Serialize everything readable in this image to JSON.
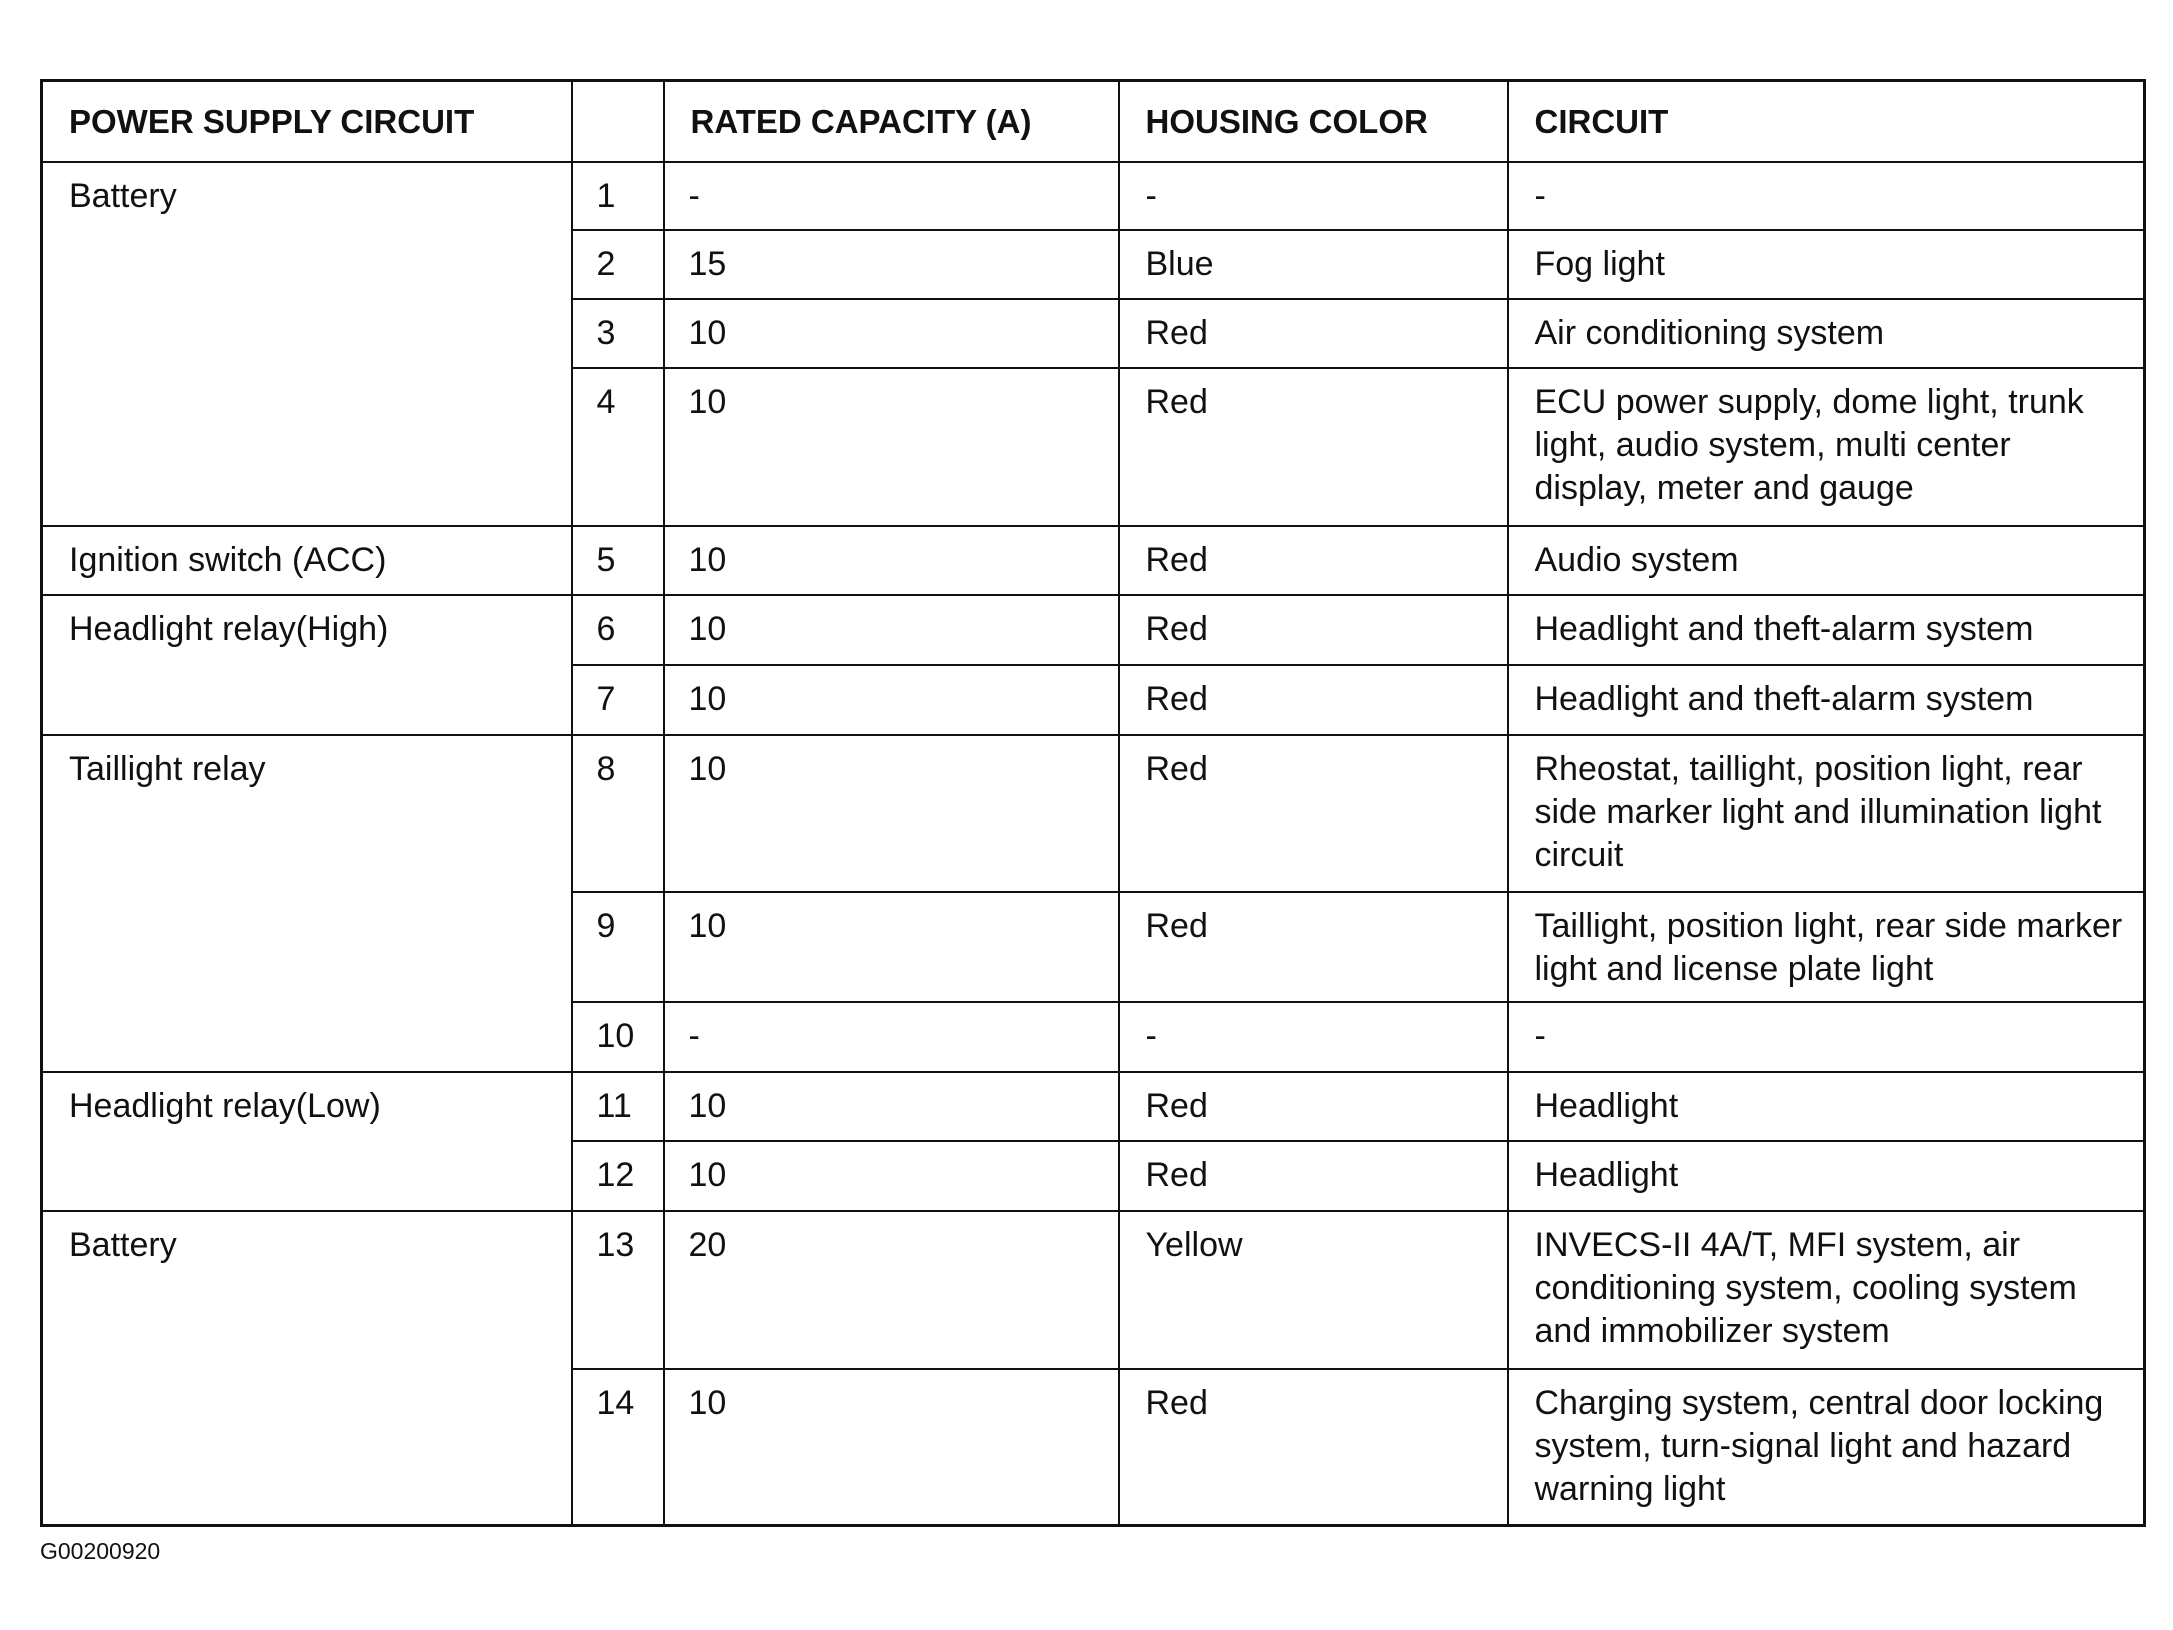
{
  "headers": [
    "POWER SUPPLY CIRCUIT",
    "",
    "RATED CAPACITY (A)",
    "HOUSING COLOR",
    "CIRCUIT"
  ],
  "groups": [
    {
      "power_supply": "Battery",
      "rows": [
        {
          "no": "1",
          "capacity": "-",
          "color": "-",
          "circuit": "-"
        },
        {
          "no": "2",
          "capacity": "15",
          "color": "Blue",
          "circuit": "Fog light"
        },
        {
          "no": "3",
          "capacity": "10",
          "color": "Red",
          "circuit": "Air conditioning system"
        },
        {
          "no": "4",
          "capacity": "10",
          "color": "Red",
          "circuit": "ECU power supply, dome light, trunk light, audio system, multi center display, meter and gauge"
        }
      ]
    },
    {
      "power_supply": "Ignition switch (ACC)",
      "rows": [
        {
          "no": "5",
          "capacity": "10",
          "color": "Red",
          "circuit": "Audio system"
        }
      ]
    },
    {
      "power_supply": "Headlight relay(High)",
      "rows": [
        {
          "no": "6",
          "capacity": "10",
          "color": "Red",
          "circuit": "Headlight and theft-alarm system"
        },
        {
          "no": "7",
          "capacity": "10",
          "color": "Red",
          "circuit": "Headlight and theft-alarm system"
        }
      ]
    },
    {
      "power_supply": "Taillight relay",
      "rows": [
        {
          "no": "8",
          "capacity": "10",
          "color": "Red",
          "circuit": "Rheostat, taillight, position light, rear side marker light and illumination light circuit"
        },
        {
          "no": "9",
          "capacity": "10",
          "color": "Red",
          "circuit": "Taillight, position light, rear side marker light and license plate light"
        },
        {
          "no": "10",
          "capacity": "-",
          "color": "-",
          "circuit": "-"
        }
      ]
    },
    {
      "power_supply": "Headlight relay(Low)",
      "rows": [
        {
          "no": "11",
          "capacity": "10",
          "color": "Red",
          "circuit": "Headlight"
        },
        {
          "no": "12",
          "capacity": "10",
          "color": "Red",
          "circuit": "Headlight"
        }
      ]
    },
    {
      "power_supply": "Battery",
      "rows": [
        {
          "no": "13",
          "capacity": "20",
          "color": "Yellow",
          "circuit": "INVECS-II 4A/T, MFI system, air conditioning system, cooling system and immobilizer system"
        },
        {
          "no": "14",
          "capacity": "10",
          "color": "Red",
          "circuit": "Charging system, central door locking system, turn-signal light and hazard warning light"
        }
      ]
    }
  ],
  "figure_code": "G00200920"
}
